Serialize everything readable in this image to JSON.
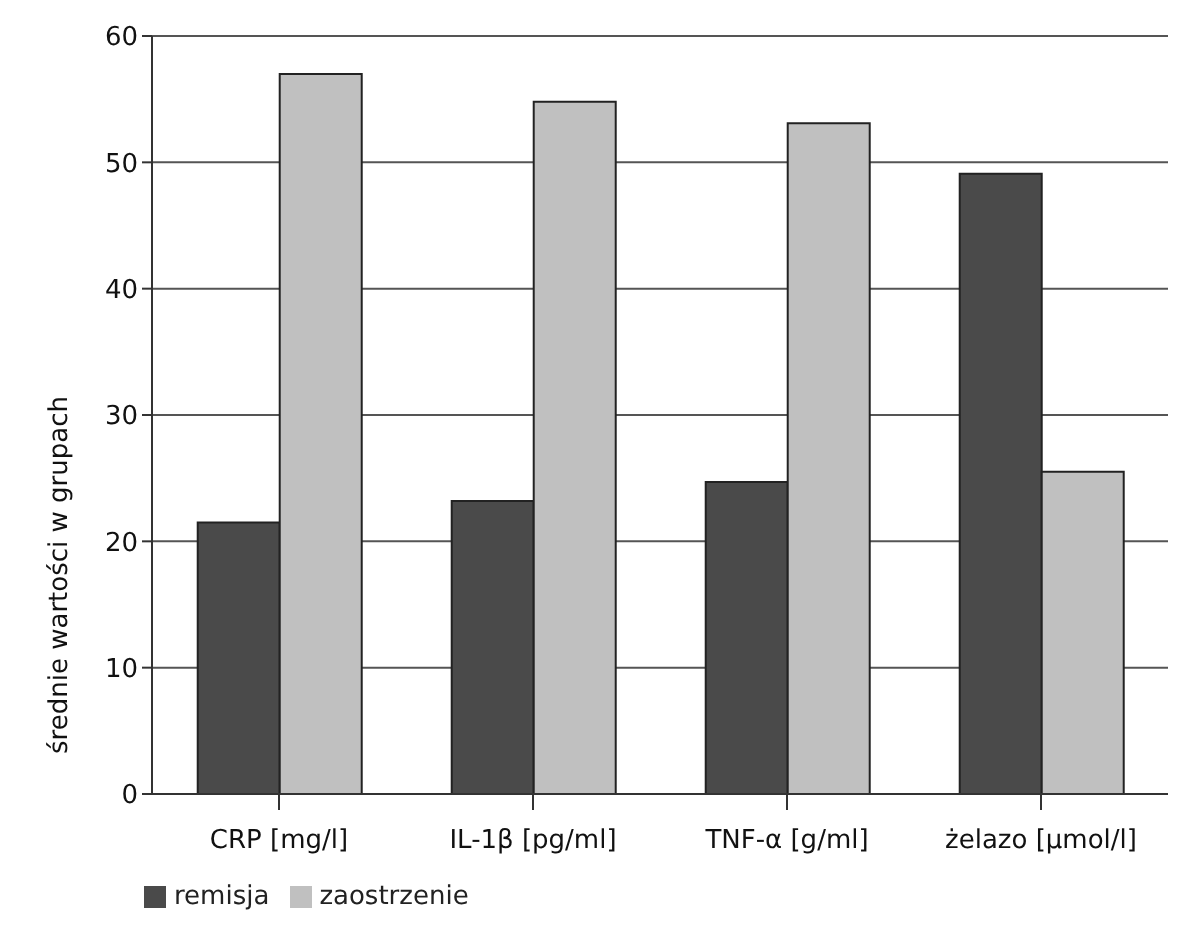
{
  "chart_data": {
    "type": "bar",
    "ylabel": "średnie wartości w grupach",
    "categories": [
      "CRP [mg/l]",
      "IL-1β [pg/ml]",
      "TNF-α [g/ml]",
      "żelazo [µmol/l]"
    ],
    "series": [
      {
        "name": "remisja",
        "color": "#4a4a4a",
        "values": [
          21.5,
          23.2,
          24.7,
          49.1
        ]
      },
      {
        "name": "zaostrzenie",
        "color": "#c0c0c0",
        "values": [
          57,
          54.8,
          53.1,
          25.5
        ]
      }
    ],
    "ylim": [
      0,
      60
    ],
    "yticks": [
      0,
      10,
      20,
      30,
      40,
      50,
      60
    ],
    "grid": "y",
    "legend": "bottom left"
  }
}
